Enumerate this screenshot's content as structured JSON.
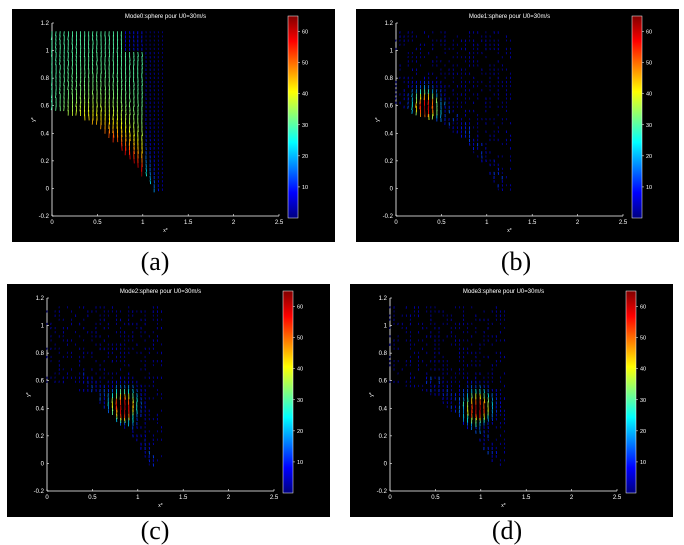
{
  "chart_data": [
    {
      "type": "quiver",
      "title": "Mode0:sphere pour U0=30m/s",
      "caption": "(a)",
      "xlabel": "x*",
      "ylabel": "y*",
      "xlim": [
        0,
        2.5
      ],
      "ylim": [
        -0.2,
        1.2
      ],
      "xticks": [
        "0",
        "0.5",
        "1",
        "1.5",
        "2",
        "2.5"
      ],
      "yticks": [
        "-0.2",
        "0",
        "0.2",
        "0.4",
        "0.6",
        "0.8",
        "1",
        "1.2"
      ],
      "colorbar": {
        "min": 0,
        "max": 65,
        "ticks": [
          "10",
          "20",
          "30",
          "40",
          "50",
          "60"
        ]
      },
      "hotspot": {
        "x": 0.75,
        "y": 0.35,
        "magnitude": 63
      },
      "field_extent": {
        "x": [
          0,
          1.25
        ],
        "y": [
          0,
          1.17
        ]
      }
    },
    {
      "type": "quiver",
      "title": "Mode1:sphere pour U0=30m/s",
      "caption": "(b)",
      "xlabel": "x*",
      "ylabel": "y*",
      "xlim": [
        0,
        2.5
      ],
      "ylim": [
        -0.2,
        1.2
      ],
      "xticks": [
        "0",
        "0.5",
        "1",
        "1.5",
        "2",
        "2.5"
      ],
      "yticks": [
        "-0.2",
        "0",
        "0.2",
        "0.4",
        "0.6",
        "0.8",
        "1",
        "1.2"
      ],
      "colorbar": {
        "min": 0,
        "max": 65,
        "ticks": [
          "10",
          "20",
          "30",
          "40",
          "50",
          "60"
        ]
      },
      "hotspot": {
        "x": 0.32,
        "y": 0.62,
        "magnitude": 62
      },
      "field_extent": {
        "x": [
          0,
          1.3
        ],
        "y": [
          0,
          1.17
        ]
      }
    },
    {
      "type": "quiver",
      "title": "Mode2:sphere pour U0=30m/s",
      "caption": "(c)",
      "xlabel": "x*",
      "ylabel": "y*",
      "xlim": [
        0,
        2.5
      ],
      "ylim": [
        -0.2,
        1.2
      ],
      "xticks": [
        "0",
        "0.5",
        "1",
        "1.5",
        "2",
        "2.5"
      ],
      "yticks": [
        "-0.2",
        "0",
        "0.2",
        "0.4",
        "0.6",
        "0.8",
        "1",
        "1.2"
      ],
      "colorbar": {
        "min": 0,
        "max": 65,
        "ticks": [
          "10",
          "20",
          "30",
          "40",
          "50",
          "60"
        ]
      },
      "hotspot": {
        "x": 0.85,
        "y": 0.44,
        "magnitude": 63
      },
      "field_extent": {
        "x": [
          0,
          1.3
        ],
        "y": [
          0,
          1.17
        ]
      }
    },
    {
      "type": "quiver",
      "title": "Mode3:sphere pour U0=30m/s",
      "caption": "(d)",
      "xlabel": "x*",
      "ylabel": "y*",
      "xlim": [
        0,
        2.5
      ],
      "ylim": [
        -0.2,
        1.2
      ],
      "xticks": [
        "0",
        "0.5",
        "1",
        "1.5",
        "2",
        "2.5"
      ],
      "yticks": [
        "-0.2",
        "0",
        "0.2",
        "0.4",
        "0.6",
        "0.8",
        "1",
        "1.2"
      ],
      "colorbar": {
        "min": 0,
        "max": 65,
        "ticks": [
          "10",
          "20",
          "30",
          "40",
          "50",
          "60"
        ]
      },
      "hotspot": {
        "x": 0.97,
        "y": 0.43,
        "magnitude": 63
      },
      "field_extent": {
        "x": [
          0,
          1.3
        ],
        "y": [
          0,
          1.17
        ]
      }
    }
  ]
}
